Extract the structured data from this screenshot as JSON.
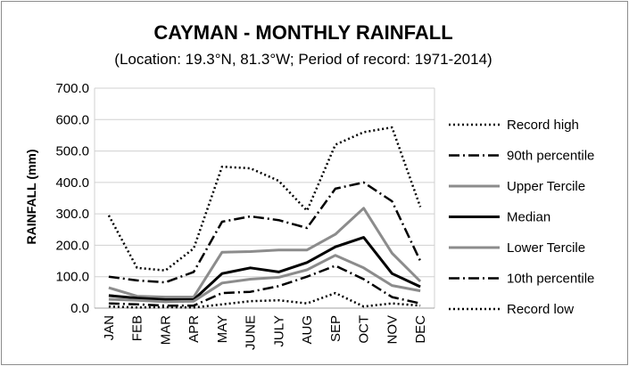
{
  "chart_data": {
    "type": "line",
    "title": "CAYMAN - MONTHLY RAINFALL",
    "subtitle": "(Location: 19.3°N, 81.3°W; Period of record: 1971-2014)",
    "xlabel": "",
    "ylabel": "RAINFALL (mm)",
    "ylim": [
      0,
      700
    ],
    "yticks": [
      "0.0",
      "100.0",
      "200.0",
      "300.0",
      "400.0",
      "500.0",
      "600.0",
      "700.0"
    ],
    "grid": "horizontal",
    "legend_position": "right",
    "categories": [
      "JAN",
      "FEB",
      "MAR",
      "APR",
      "MAY",
      "JUNE",
      "JULY",
      "AUG",
      "SEP",
      "OCT",
      "NOV",
      "DEC"
    ],
    "series": [
      {
        "name": "Record high",
        "style": "dotted",
        "color": "#000000",
        "values": [
          295,
          128,
          120,
          190,
          450,
          445,
          405,
          310,
          520,
          560,
          575,
          322
        ]
      },
      {
        "name": "90th percentile",
        "style": "dashdot",
        "color": "#000000",
        "values": [
          100,
          88,
          82,
          115,
          275,
          292,
          280,
          255,
          380,
          400,
          340,
          150
        ]
      },
      {
        "name": "Upper Tercile",
        "style": "solid",
        "color": "#8c8c8c",
        "values": [
          65,
          38,
          35,
          35,
          178,
          180,
          185,
          185,
          235,
          318,
          175,
          85
        ]
      },
      {
        "name": "Median",
        "style": "solid",
        "color": "#000000",
        "values": [
          40,
          32,
          27,
          27,
          110,
          128,
          115,
          145,
          195,
          225,
          110,
          68
        ]
      },
      {
        "name": "Lower Tercile",
        "style": "solid",
        "color": "#8c8c8c",
        "values": [
          28,
          25,
          20,
          22,
          80,
          92,
          98,
          122,
          168,
          128,
          72,
          55
        ]
      },
      {
        "name": "10th percentile",
        "style": "dashdot",
        "color": "#000000",
        "values": [
          15,
          12,
          8,
          8,
          48,
          52,
          70,
          100,
          135,
          92,
          35,
          15
        ]
      },
      {
        "name": "Record low",
        "style": "dotted",
        "color": "#000000",
        "values": [
          5,
          2,
          3,
          2,
          12,
          22,
          25,
          15,
          48,
          5,
          15,
          8
        ]
      }
    ]
  }
}
